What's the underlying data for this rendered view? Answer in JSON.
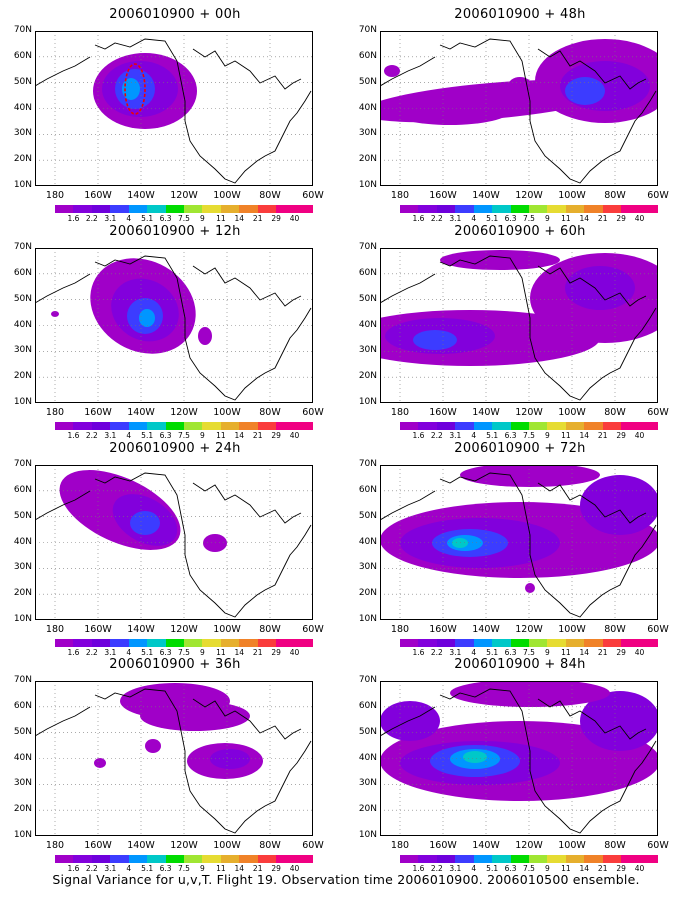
{
  "caption": "Signal Variance for u,v,T. Flight 19. Observation time 2006010900. 2006010500 ensemble.",
  "panels": [
    {
      "title": "2006010900 + 00h"
    },
    {
      "title": "2006010900 + 48h"
    },
    {
      "title": "2006010900 + 12h"
    },
    {
      "title": "2006010900 + 60h"
    },
    {
      "title": "2006010900 + 24h"
    },
    {
      "title": "2006010900 + 72h"
    },
    {
      "title": "2006010900 + 36h"
    },
    {
      "title": "2006010900 + 84h"
    }
  ],
  "lat_labels": [
    "70N",
    "60N",
    "50N",
    "40N",
    "30N",
    "20N",
    "10N"
  ],
  "lon_labels": [
    "180",
    "160W",
    "140W",
    "120W",
    "100W",
    "80W",
    "60W"
  ],
  "colorbar": {
    "labels": [
      "1.6",
      "2.2",
      "3.1",
      "4",
      "5.1",
      "6.3",
      "7.5",
      "9",
      "11",
      "14",
      "21",
      "29",
      "40"
    ],
    "colors": [
      "#a000c8",
      "#8200dc",
      "#6e00dc",
      "#3c3cff",
      "#0096ff",
      "#00c8c8",
      "#00dc00",
      "#a0e632",
      "#e6dc32",
      "#e6af2d",
      "#f08228",
      "#fa3c3c",
      "#f00082"
    ]
  },
  "map_legend_colors": {
    "level1": "#a000c8",
    "level2": "#8200dc",
    "level3": "#3c3cff",
    "level4": "#0096ff",
    "level5": "#00c8c8",
    "flight_track": "#f00000"
  }
}
